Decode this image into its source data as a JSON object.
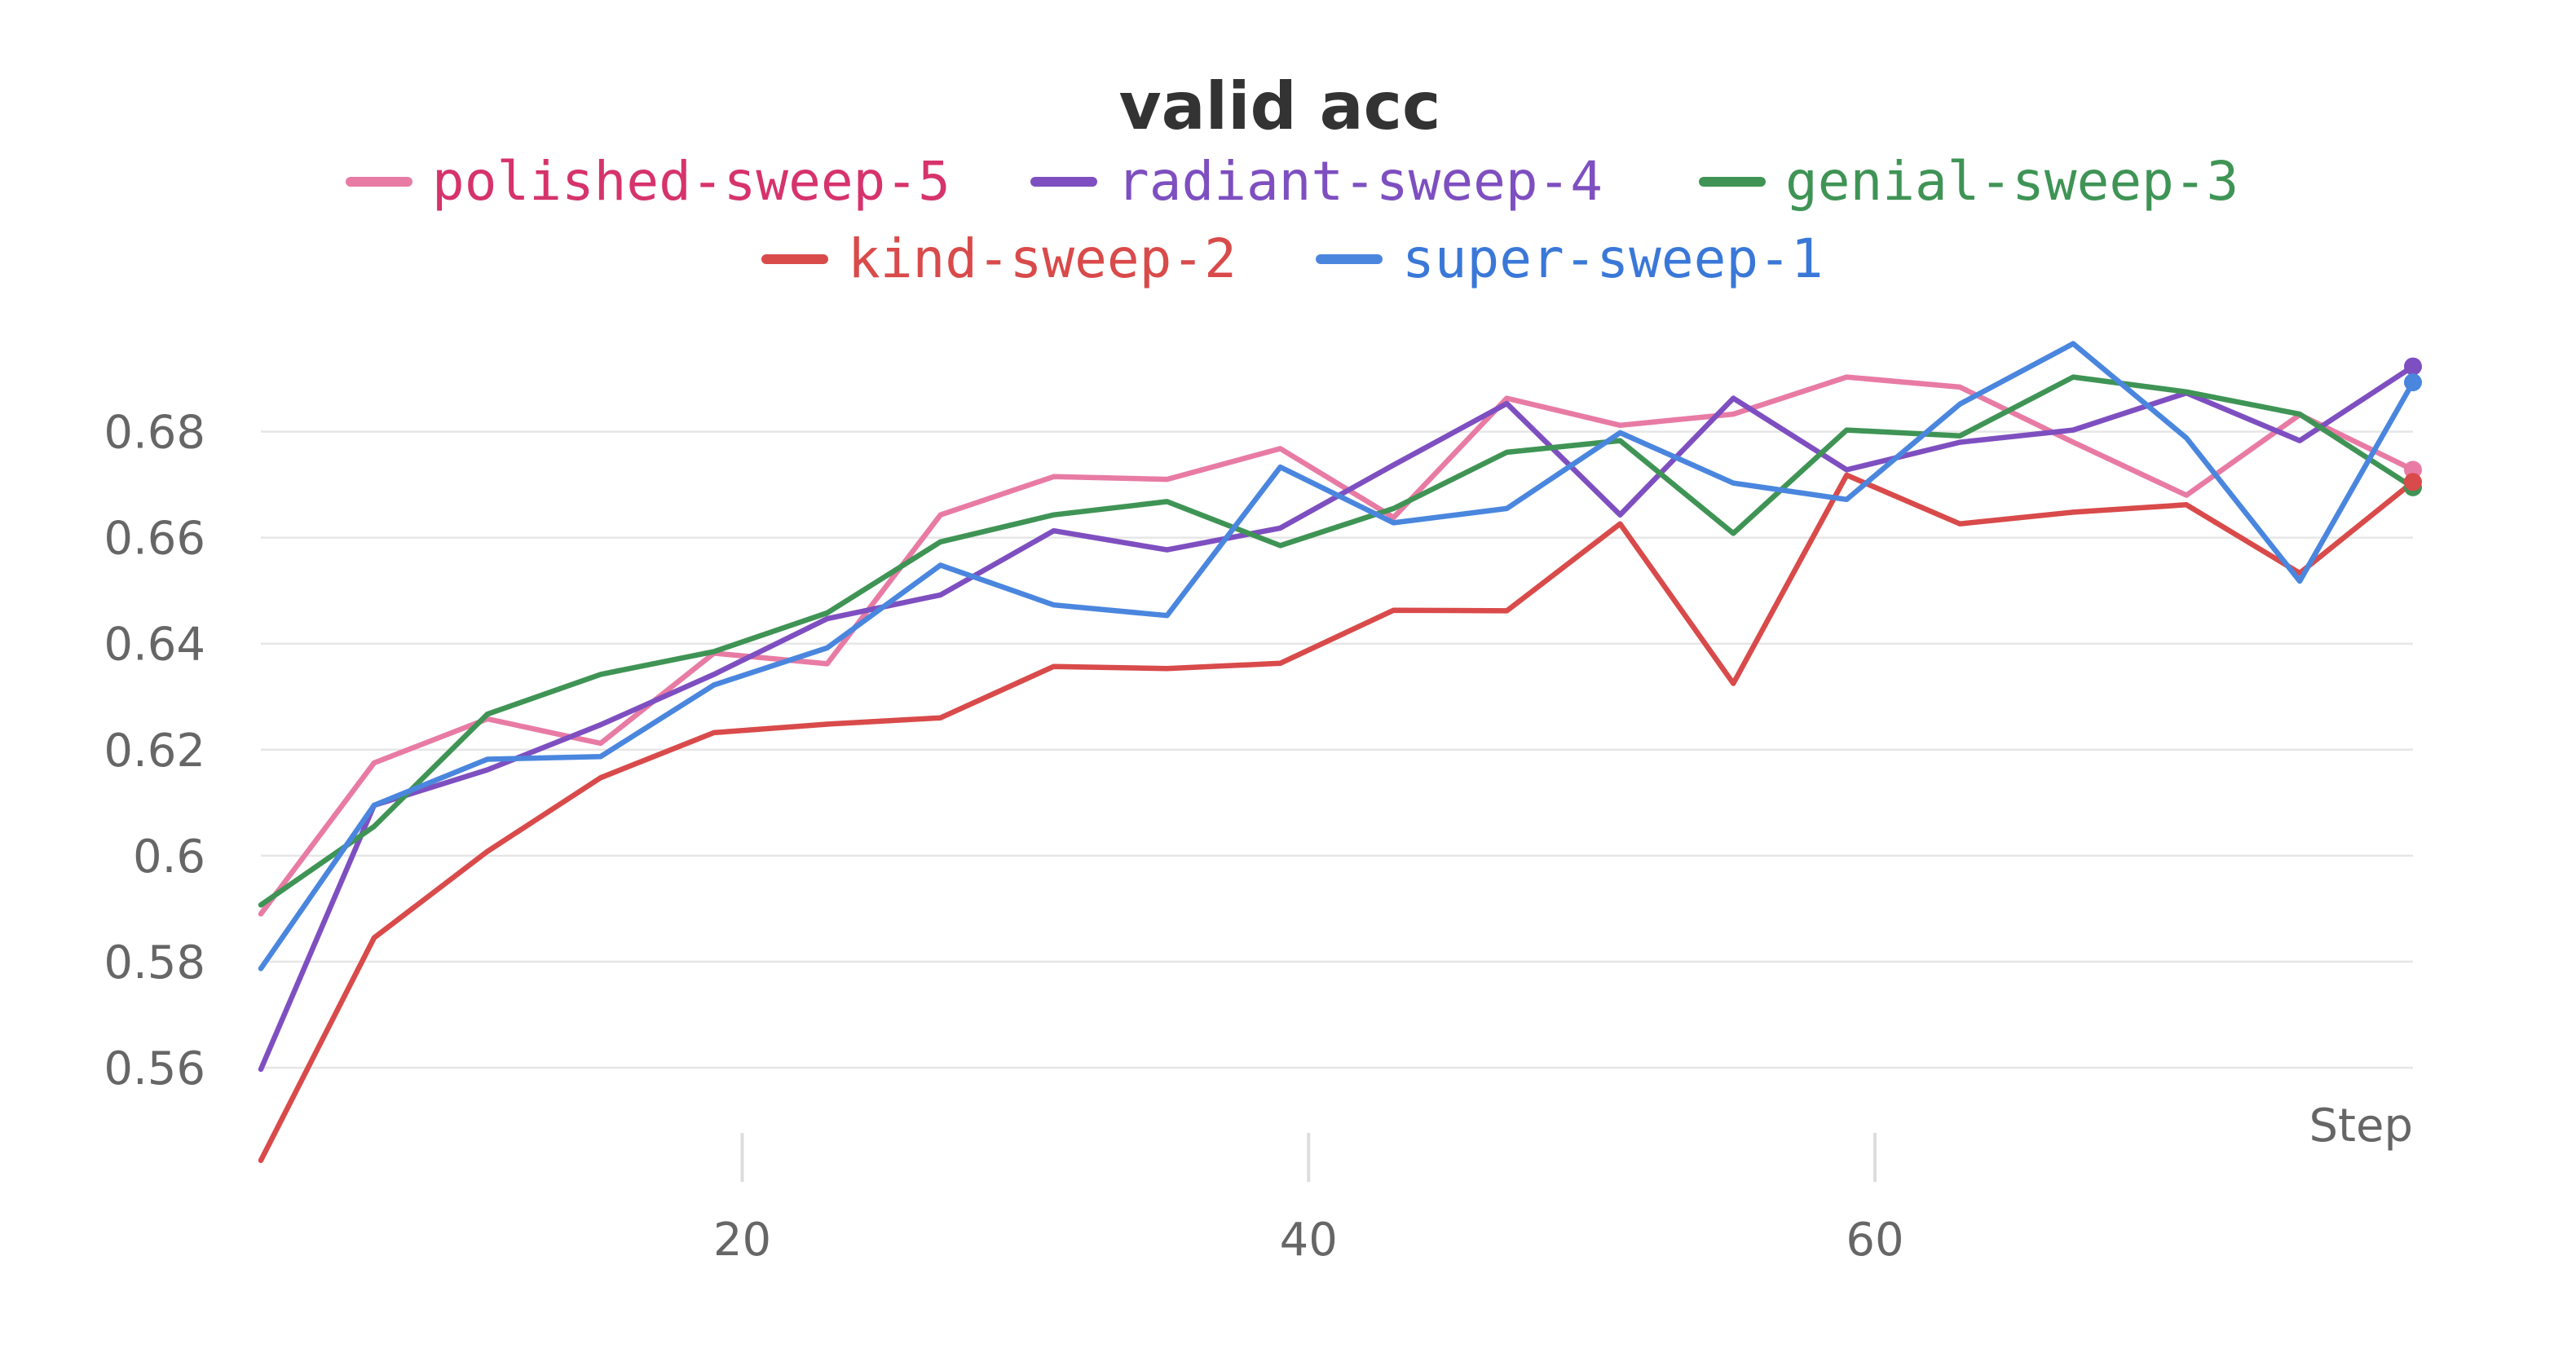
{
  "chart_data": {
    "type": "line",
    "title": "valid acc",
    "xlabel": "Step",
    "ylabel": "",
    "xlim": [
      3,
      79
    ],
    "ylim": [
      0.54,
      0.703
    ],
    "x_ticks": [
      20,
      40,
      60
    ],
    "y_ticks": [
      0.56,
      0.58,
      0.6,
      0.62,
      0.64,
      0.66,
      0.68
    ],
    "grid": true,
    "legend_position": "top",
    "x": [
      3,
      7,
      11,
      15,
      19,
      23,
      27,
      31,
      35,
      39,
      43,
      47,
      51,
      55,
      59,
      63,
      67,
      71,
      75,
      79
    ],
    "series": [
      {
        "name": "polished-sweep-5",
        "color": "#e87ba4",
        "label_color": "#d6336c",
        "values": [
          0.589,
          0.6175,
          0.6258,
          0.6212,
          0.6382,
          0.6362,
          0.6643,
          0.6715,
          0.671,
          0.6768,
          0.6638,
          0.6863,
          0.6812,
          0.6833,
          0.6903,
          0.6884,
          0.678,
          0.668,
          0.6832,
          0.6728
        ]
      },
      {
        "name": "radiant-sweep-4",
        "color": "#7e4fc0",
        "label_color": "#7e4fc0",
        "values": [
          0.5597,
          0.6095,
          0.6162,
          0.6247,
          0.6342,
          0.6447,
          0.6492,
          0.6613,
          0.6577,
          0.6618,
          0.6737,
          0.6853,
          0.6643,
          0.6863,
          0.6728,
          0.678,
          0.6803,
          0.6873,
          0.6783,
          0.6923
        ]
      },
      {
        "name": "genial-sweep-3",
        "color": "#3f9455",
        "label_color": "#3f9455",
        "values": [
          0.5907,
          0.6055,
          0.6267,
          0.6342,
          0.6385,
          0.6458,
          0.6592,
          0.6643,
          0.6668,
          0.6585,
          0.6655,
          0.6761,
          0.6783,
          0.6608,
          0.6803,
          0.6792,
          0.6903,
          0.6875,
          0.6833,
          0.6695
        ]
      },
      {
        "name": "kind-sweep-2",
        "color": "#d94a4a",
        "label_color": "#d94a4a",
        "values": [
          0.5425,
          0.5845,
          0.6008,
          0.6147,
          0.6232,
          0.6248,
          0.626,
          0.6357,
          0.6353,
          0.6363,
          0.6463,
          0.6462,
          0.6626,
          0.6325,
          0.6718,
          0.6626,
          0.6648,
          0.6662,
          0.6533,
          0.6705
        ]
      },
      {
        "name": "super-sweep-1",
        "color": "#4a86de",
        "label_color": "#3a78d8",
        "values": [
          0.5787,
          0.6095,
          0.6182,
          0.6187,
          0.6322,
          0.6392,
          0.6548,
          0.6473,
          0.6453,
          0.6733,
          0.6628,
          0.6655,
          0.6798,
          0.6703,
          0.6672,
          0.6852,
          0.6966,
          0.6788,
          0.6518,
          0.6893
        ]
      }
    ]
  }
}
